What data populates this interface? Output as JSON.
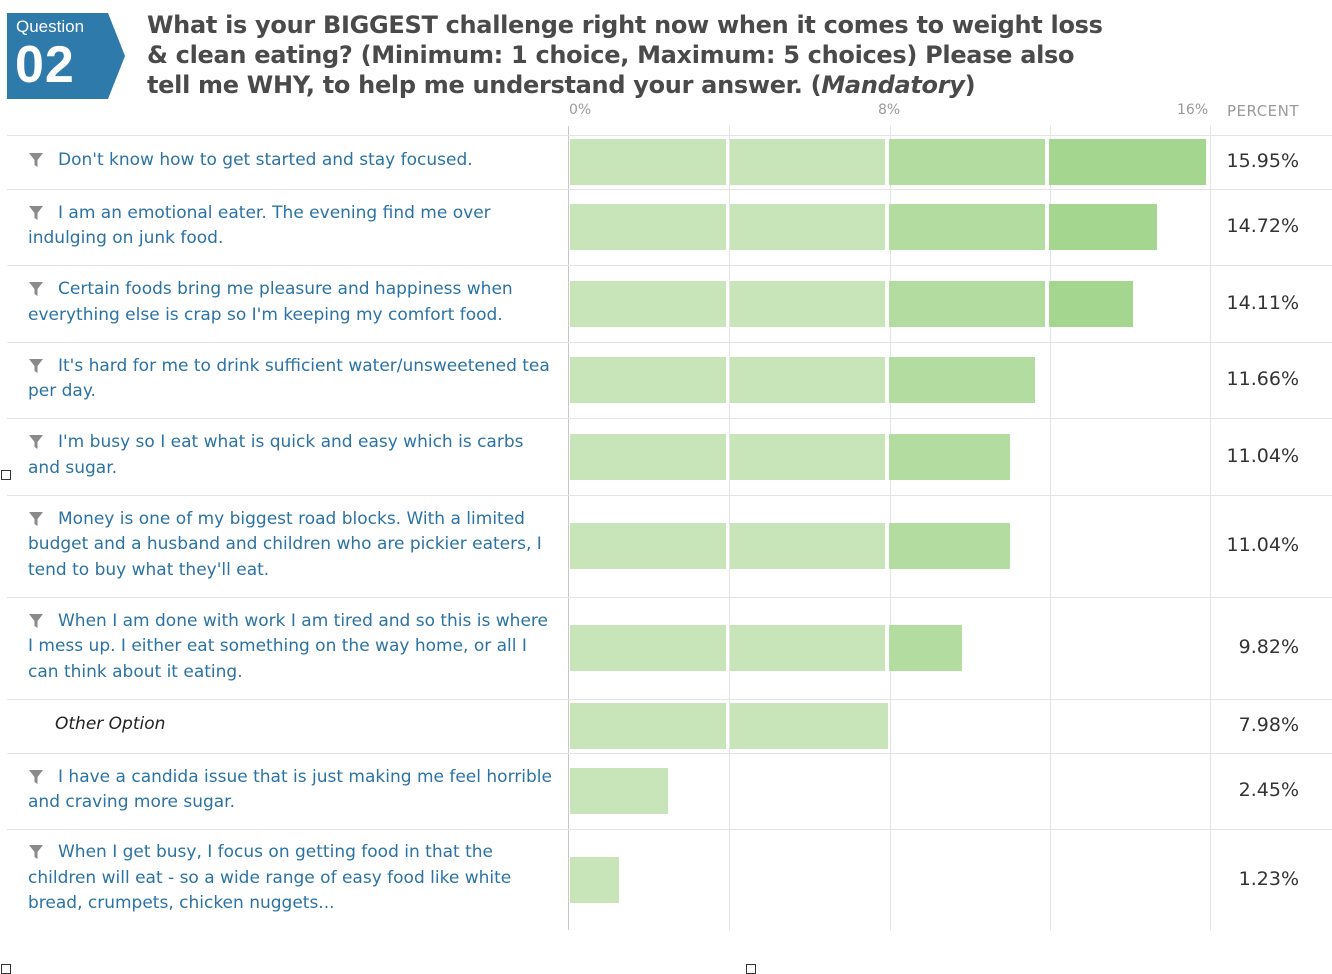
{
  "question": {
    "badge_label": "Question",
    "badge_number": "02",
    "text_main": "What is your BIGGEST challenge right now when it comes to weight loss & clean eating? (Minimum: 1 choice, Maximum: 5 choices) Please also tell me WHY, to help me understand your answer. (",
    "text_mandatory": "Mandatory",
    "text_end": ")"
  },
  "axis": {
    "percent_header": "PERCENT"
  },
  "colors": {
    "badge": "#2e7aab",
    "bar_light": "#c7e5b9",
    "bar_mid": "#b2dca0",
    "bar_dark": "#a5d68f",
    "label_text": "#2b73a4"
  },
  "icons": {
    "row_filter": "filter-icon"
  },
  "chart_data": {
    "type": "bar",
    "orientation": "horizontal",
    "title": "What is your BIGGEST challenge right now when it comes to weight loss & clean eating? (Minimum: 1 choice, Maximum: 5 choices) Please also tell me WHY, to help me understand your answer. (Mandatory)",
    "xlabel": "PERCENT",
    "xlim": [
      0,
      16
    ],
    "x_ticks": [
      "0%",
      "8%",
      "16%"
    ],
    "grid": true,
    "categories": [
      "Don't know how to get started and stay focused.",
      "I am an emotional eater. The evening find me over indulging on junk food.",
      "Certain foods bring me pleasure and happiness when everything else is crap so I'm keeping my comfort food.",
      "It's hard for me to drink sufficient water/unsweetened tea per day.",
      "I'm busy so I eat what is quick and easy which is carbs and sugar.",
      "Money is one of my biggest road blocks. With a limited budget and a husband and children who are pickier eaters, I tend to buy what they'll eat.",
      "When I am done with work I am tired and so this is where I mess up. I either eat something on the way home, or all I can think about it eating.",
      "Other Option",
      "I have a candida issue that is just making me feel horrible and craving more sugar.",
      "When I get busy, I focus on getting food in that the children will eat - so a wide range of easy food like white bread, crumpets, chicken nuggets..."
    ],
    "values": [
      15.95,
      14.72,
      14.11,
      11.66,
      11.04,
      11.04,
      9.82,
      7.98,
      2.45,
      1.23
    ],
    "value_labels": [
      "15.95%",
      "14.72%",
      "14.11%",
      "11.66%",
      "11.04%",
      "11.04%",
      "9.82%",
      "7.98%",
      "2.45%",
      "1.23%"
    ],
    "filter_icon": [
      true,
      true,
      true,
      true,
      true,
      true,
      true,
      false,
      true,
      true
    ]
  }
}
